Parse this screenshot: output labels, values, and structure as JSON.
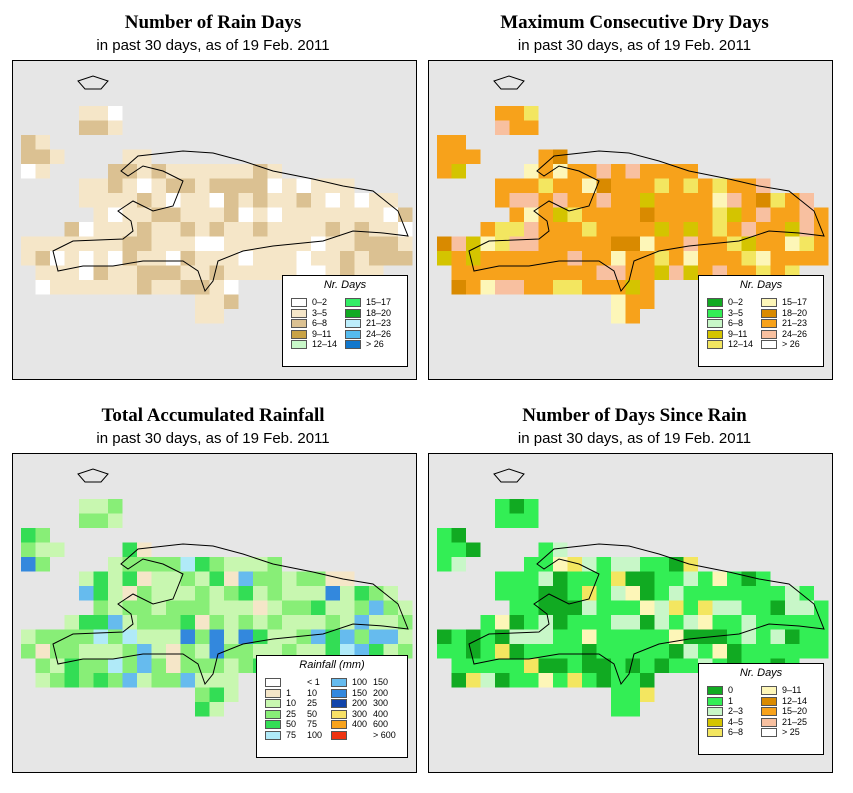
{
  "panels": {
    "rain_days": {
      "title": "Number of Rain Days",
      "subtitle": "in past 30 days, as of  19 Feb. 2011",
      "legend_title": "Nr. Days",
      "legend_left": [
        {
          "label": "0–2",
          "color": "#ffffff"
        },
        {
          "label": "3–5",
          "color": "#f5e6c8"
        },
        {
          "label": "6–8",
          "color": "#dbc192"
        },
        {
          "label": "9–11",
          "color": "#c8a245"
        },
        {
          "label": "12–14",
          "color": "#c8f7c8"
        }
      ],
      "legend_right": [
        {
          "label": "15–17",
          "color": "#33ee66"
        },
        {
          "label": "18–20",
          "color": "#11aa22"
        },
        {
          "label": "21–23",
          "color": "#bdeefc"
        },
        {
          "label": "24–26",
          "color": "#55bbee"
        },
        {
          "label": "> 26",
          "color": "#1177cc"
        }
      ]
    },
    "dry_days": {
      "title": "Maximum Consecutive Dry Days",
      "subtitle": "in past 30 days, as of  19 Feb. 2011",
      "legend_title": "Nr. Days",
      "legend_left": [
        {
          "label": "0–2",
          "color": "#11aa22"
        },
        {
          "label": "3–5",
          "color": "#33ee55"
        },
        {
          "label": "6–8",
          "color": "#c8f7c8"
        },
        {
          "label": "9–11",
          "color": "#d4c400"
        },
        {
          "label": "12–14",
          "color": "#f3e660"
        }
      ],
      "legend_right": [
        {
          "label": "15–17",
          "color": "#fdf6b8"
        },
        {
          "label": "18–20",
          "color": "#d98a00"
        },
        {
          "label": "21–23",
          "color": "#f7a21b"
        },
        {
          "label": "24–26",
          "color": "#f8c0a0"
        },
        {
          "label": "> 26",
          "color": "#ffffff"
        }
      ]
    },
    "rainfall": {
      "title": "Total Accumulated Rainfall",
      "subtitle": "in past 30 days, as of  19 Feb. 2011",
      "legend_title": "Rainfall (mm)",
      "legend_left": [
        {
          "a": "",
          "b": "< 1",
          "color": "#ffffff"
        },
        {
          "a": "1",
          "b": "10",
          "color": "#f5e6c8"
        },
        {
          "a": "10",
          "b": "25",
          "color": "#c8f7b0"
        },
        {
          "a": "25",
          "b": "50",
          "color": "#88ee77"
        },
        {
          "a": "50",
          "b": "75",
          "color": "#33dd55"
        },
        {
          "a": "75",
          "b": "100",
          "color": "#b0eaf8"
        }
      ],
      "legend_right": [
        {
          "a": "100",
          "b": "150",
          "color": "#66bbee"
        },
        {
          "a": "150",
          "b": "200",
          "color": "#3388dd"
        },
        {
          "a": "200",
          "b": "300",
          "color": "#1144aa"
        },
        {
          "a": "300",
          "b": "400",
          "color": "#f7e066"
        },
        {
          "a": "400",
          "b": "600",
          "color": "#f7a21b"
        },
        {
          "a": "",
          "b": "> 600",
          "color": "#ee3311"
        }
      ]
    },
    "since_rain": {
      "title": "Number of Days Since Rain",
      "subtitle": "in past 30 days, as of  19 Feb. 2011",
      "legend_title": "Nr. Days",
      "legend_left": [
        {
          "label": "0",
          "color": "#11aa22"
        },
        {
          "label": "1",
          "color": "#33ee55"
        },
        {
          "label": "2–3",
          "color": "#c8f7c8"
        },
        {
          "label": "4–5",
          "color": "#d4c400"
        },
        {
          "label": "6–8",
          "color": "#f3e660"
        }
      ],
      "legend_right": [
        {
          "label": "9–11",
          "color": "#fdf6b8"
        },
        {
          "label": "12–14",
          "color": "#d98a00"
        },
        {
          "label": "15–20",
          "color": "#f7a21b"
        },
        {
          "label": "21–25",
          "color": "#f8c0a0"
        },
        {
          "label": "> 25",
          "color": "#ffffff"
        }
      ]
    }
  }
}
